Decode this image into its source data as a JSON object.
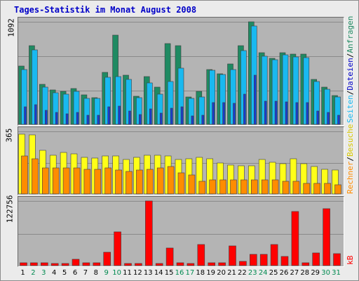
{
  "title": "Tages-Statistik im Monat August 2008",
  "colors": {
    "anfragen": "#1f8a62",
    "dateien": "#19b9f0",
    "seiten": "#19b9f0",
    "besuche": "#ffff18",
    "rechner": "#ff8c00",
    "kb": "#ff0000",
    "grid": "#8a8a8a",
    "weekend": "#008a50",
    "weekday": "#000000"
  },
  "legend": {
    "anfragen": "Anfragen",
    "dateien": "Dateien",
    "seiten": "Seiten",
    "besuche": "Besuche",
    "rechner": "Rechner",
    "kb": "kB",
    "sep": "/"
  },
  "chart_data": [
    {
      "type": "bar",
      "name": "hits-files-pages",
      "ymax_label": "1092",
      "ylim": [
        0,
        1092
      ],
      "categories": [
        "1",
        "2",
        "3",
        "4",
        "5",
        "6",
        "7",
        "8",
        "9",
        "10",
        "11",
        "12",
        "13",
        "14",
        "15",
        "16",
        "17",
        "18",
        "19",
        "20",
        "21",
        "22",
        "23",
        "24",
        "25",
        "26",
        "27",
        "28",
        "29",
        "30",
        "31"
      ],
      "weekend": [
        false,
        true,
        true,
        false,
        false,
        false,
        false,
        false,
        true,
        true,
        false,
        false,
        false,
        false,
        false,
        true,
        true,
        false,
        false,
        false,
        false,
        false,
        true,
        true,
        false,
        false,
        false,
        false,
        false,
        true,
        true
      ],
      "series": [
        {
          "name": "Anfragen",
          "values": [
            620,
            835,
            425,
            365,
            355,
            385,
            315,
            285,
            555,
            950,
            525,
            300,
            505,
            395,
            860,
            835,
            290,
            355,
            580,
            540,
            645,
            835,
            1090,
            760,
            705,
            760,
            750,
            745,
            475,
            395,
            310
          ]
        },
        {
          "name": "Dateien",
          "values": [
            585,
            790,
            395,
            340,
            320,
            355,
            275,
            280,
            500,
            505,
            480,
            285,
            440,
            320,
            455,
            595,
            280,
            290,
            575,
            530,
            585,
            785,
            1050,
            725,
            685,
            740,
            720,
            710,
            455,
            375,
            295
          ]
        },
        {
          "name": "Seiten",
          "values": [
            190,
            210,
            150,
            130,
            115,
            125,
            95,
            100,
            190,
            195,
            140,
            105,
            165,
            120,
            175,
            190,
            90,
            95,
            235,
            230,
            225,
            320,
            520,
            250,
            245,
            240,
            235,
            230,
            140,
            130,
            95
          ]
        }
      ]
    },
    {
      "type": "bar",
      "name": "visits-hosts",
      "ymax_label": "365",
      "ylim": [
        0,
        365
      ],
      "categories": [
        "1",
        "2",
        "3",
        "4",
        "5",
        "6",
        "7",
        "8",
        "9",
        "10",
        "11",
        "12",
        "13",
        "14",
        "15",
        "16",
        "17",
        "18",
        "19",
        "20",
        "21",
        "22",
        "23",
        "24",
        "25",
        "26",
        "27",
        "28",
        "29",
        "30",
        "31"
      ],
      "series": [
        {
          "name": "Besuche",
          "values": [
            350,
            345,
            255,
            225,
            240,
            235,
            215,
            210,
            220,
            220,
            200,
            215,
            225,
            225,
            220,
            200,
            205,
            215,
            205,
            180,
            170,
            165,
            165,
            200,
            185,
            175,
            205,
            175,
            160,
            145,
            140
          ]
        },
        {
          "name": "Rechner",
          "values": [
            220,
            205,
            150,
            150,
            150,
            150,
            145,
            145,
            150,
            140,
            130,
            140,
            145,
            150,
            160,
            125,
            110,
            75,
            80,
            80,
            80,
            80,
            80,
            80,
            80,
            75,
            75,
            60,
            60,
            60,
            55
          ]
        }
      ]
    },
    {
      "type": "bar",
      "name": "kb",
      "ymax_label": "122756",
      "ylim": [
        0,
        122756
      ],
      "categories": [
        "1",
        "2",
        "3",
        "4",
        "5",
        "6",
        "7",
        "8",
        "9",
        "10",
        "11",
        "12",
        "13",
        "14",
        "15",
        "16",
        "17",
        "18",
        "19",
        "20",
        "21",
        "22",
        "23",
        "24",
        "25",
        "26",
        "27",
        "28",
        "29",
        "30",
        "31"
      ],
      "series": [
        {
          "name": "kB",
          "values": [
            5000,
            5000,
            5000,
            3900,
            4000,
            11500,
            5000,
            5000,
            25800,
            63500,
            4000,
            3800,
            122756,
            4000,
            33000,
            6000,
            4000,
            40400,
            5000,
            6000,
            37000,
            8000,
            22000,
            22000,
            40000,
            17000,
            103000,
            5000,
            24000,
            108000,
            23000
          ]
        }
      ]
    }
  ]
}
